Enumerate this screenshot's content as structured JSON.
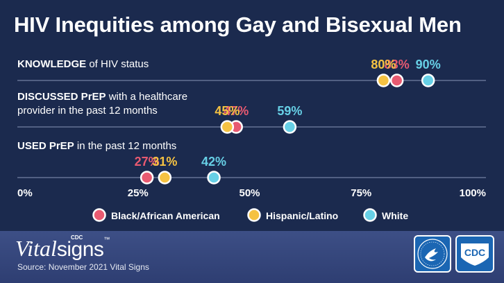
{
  "title": "HIV Inequities among Gay and Bisexual Men",
  "chart_data": {
    "type": "scatter",
    "title": "HIV Inequities among Gay and Bisexual Men",
    "xlim": [
      0,
      100
    ],
    "ticks": [
      "0%",
      "25%",
      "50%",
      "75%",
      "100%"
    ],
    "tick_values": [
      0,
      25,
      50,
      75,
      100
    ],
    "rows": [
      {
        "label_bold": "KNOWLEDGE",
        "label_rest": " of HIV status",
        "label_line2": ""
      },
      {
        "label_bold": "DISCUSSED PrEP",
        "label_rest": " with a healthcare",
        "label_line2": "provider in the past 12 months"
      },
      {
        "label_bold": "USED PrEP",
        "label_rest": " in the past 12 months",
        "label_line2": ""
      }
    ],
    "series": [
      {
        "name": "Black/African American",
        "color": "#e85a71",
        "values": [
          83,
          47,
          27
        ]
      },
      {
        "name": "Hispanic/Latino",
        "color": "#f5c242",
        "values": [
          80,
          45,
          31
        ]
      },
      {
        "name": "White",
        "color": "#67d0e6",
        "values": [
          90,
          59,
          42
        ]
      }
    ],
    "value_suffix": "%",
    "legend_position": "bottom"
  },
  "footer": {
    "logo_vital": "Vital",
    "logo_signs": "signs",
    "logo_cdc": "CDC",
    "logo_tm": "™",
    "source": "Source: November 2021 Vital Signs",
    "agency_badge": "CDC"
  },
  "colors": {
    "background": "#1b2a4e",
    "footer": "#3d4f86",
    "badge": "#1b66b3"
  }
}
